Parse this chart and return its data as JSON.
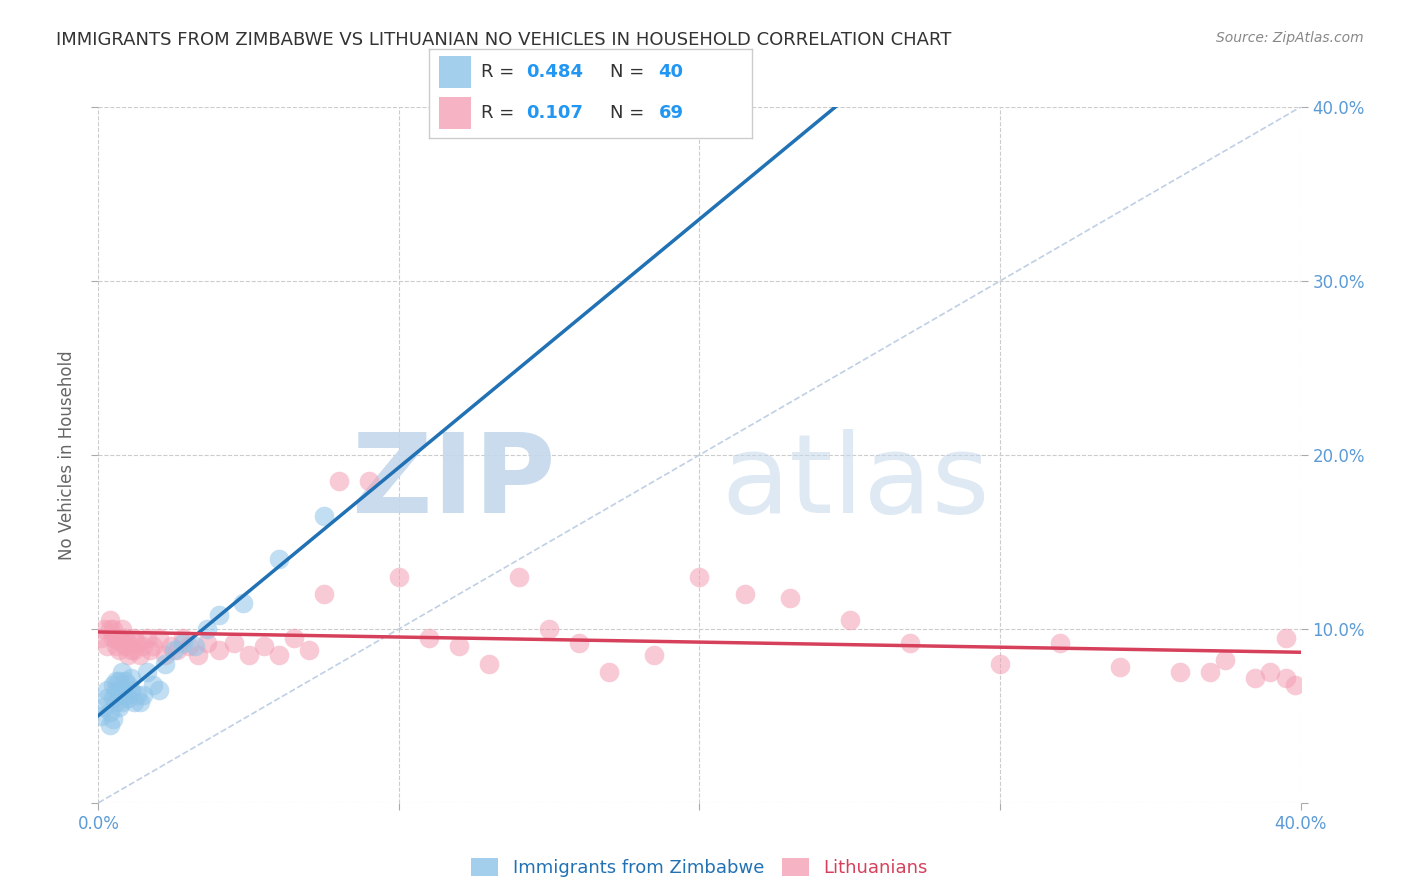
{
  "title": "IMMIGRANTS FROM ZIMBABWE VS LITHUANIAN NO VEHICLES IN HOUSEHOLD CORRELATION CHART",
  "source": "Source: ZipAtlas.com",
  "ylabel": "No Vehicles in Household",
  "xlim": [
    0.0,
    0.4
  ],
  "ylim": [
    0.0,
    0.4
  ],
  "xticks": [
    0.0,
    0.1,
    0.2,
    0.3,
    0.4
  ],
  "xticklabels": [
    "0.0%",
    "",
    "",
    "",
    "40.0%"
  ],
  "yticks": [
    0.0,
    0.1,
    0.2,
    0.3,
    0.4
  ],
  "right_yticklabels": [
    "",
    "10.0%",
    "20.0%",
    "30.0%",
    "40.0%"
  ],
  "right_yticks": [
    0.0,
    0.1,
    0.2,
    0.3,
    0.4
  ],
  "grid_color": "#cccccc",
  "background_color": "#ffffff",
  "diag_line_color": "#b0c4de",
  "series1_label": "Immigrants from Zimbabwe",
  "series1_color": "#8ec4e8",
  "series1_line_color": "#2171b5",
  "series2_label": "Lithuanians",
  "series2_color": "#f4a0b5",
  "series2_line_color": "#d6405a",
  "legend_R_color": "#333333",
  "legend_val_color": "#2196f3",
  "series1_R": "0.484",
  "series1_N": "40",
  "series2_R": "0.107",
  "series2_N": "69",
  "title_color": "#333333",
  "axis_label_color": "#666666",
  "tick_color": "#5b9bd5",
  "series1_x": [
    0.001,
    0.002,
    0.003,
    0.003,
    0.004,
    0.004,
    0.005,
    0.005,
    0.005,
    0.006,
    0.006,
    0.006,
    0.007,
    0.007,
    0.007,
    0.008,
    0.008,
    0.008,
    0.009,
    0.009,
    0.01,
    0.01,
    0.011,
    0.011,
    0.012,
    0.013,
    0.014,
    0.015,
    0.016,
    0.018,
    0.02,
    0.022,
    0.025,
    0.028,
    0.032,
    0.036,
    0.04,
    0.048,
    0.06,
    0.075
  ],
  "series1_y": [
    0.05,
    0.055,
    0.06,
    0.065,
    0.045,
    0.052,
    0.048,
    0.06,
    0.068,
    0.058,
    0.065,
    0.07,
    0.055,
    0.062,
    0.07,
    0.058,
    0.065,
    0.075,
    0.062,
    0.07,
    0.06,
    0.068,
    0.065,
    0.072,
    0.058,
    0.062,
    0.058,
    0.062,
    0.075,
    0.068,
    0.065,
    0.08,
    0.088,
    0.092,
    0.09,
    0.1,
    0.108,
    0.115,
    0.14,
    0.165
  ],
  "series2_x": [
    0.001,
    0.002,
    0.003,
    0.004,
    0.004,
    0.005,
    0.005,
    0.006,
    0.006,
    0.007,
    0.007,
    0.008,
    0.008,
    0.009,
    0.009,
    0.01,
    0.01,
    0.011,
    0.012,
    0.012,
    0.013,
    0.014,
    0.015,
    0.016,
    0.017,
    0.018,
    0.02,
    0.022,
    0.024,
    0.026,
    0.028,
    0.03,
    0.033,
    0.036,
    0.04,
    0.045,
    0.05,
    0.055,
    0.06,
    0.065,
    0.07,
    0.075,
    0.08,
    0.09,
    0.1,
    0.11,
    0.12,
    0.13,
    0.14,
    0.15,
    0.16,
    0.17,
    0.185,
    0.2,
    0.215,
    0.23,
    0.25,
    0.27,
    0.3,
    0.32,
    0.34,
    0.36,
    0.37,
    0.375,
    0.385,
    0.39,
    0.395,
    0.395,
    0.398
  ],
  "series2_y": [
    0.095,
    0.1,
    0.09,
    0.1,
    0.105,
    0.095,
    0.1,
    0.09,
    0.095,
    0.088,
    0.095,
    0.092,
    0.1,
    0.09,
    0.095,
    0.085,
    0.092,
    0.088,
    0.095,
    0.088,
    0.092,
    0.085,
    0.09,
    0.095,
    0.088,
    0.09,
    0.095,
    0.085,
    0.09,
    0.088,
    0.095,
    0.09,
    0.085,
    0.092,
    0.088,
    0.092,
    0.085,
    0.09,
    0.085,
    0.095,
    0.088,
    0.12,
    0.185,
    0.185,
    0.13,
    0.095,
    0.09,
    0.08,
    0.13,
    0.1,
    0.092,
    0.075,
    0.085,
    0.13,
    0.12,
    0.118,
    0.105,
    0.092,
    0.08,
    0.092,
    0.078,
    0.075,
    0.075,
    0.082,
    0.072,
    0.075,
    0.095,
    0.072,
    0.068
  ]
}
